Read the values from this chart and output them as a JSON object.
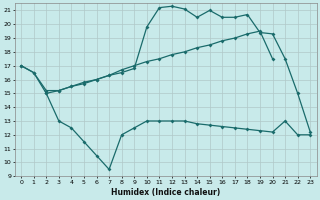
{
  "xlabel": "Humidex (Indice chaleur)",
  "bg_color": "#c8eaea",
  "grid_color": "#b0c8c8",
  "line_color": "#1a6b6b",
  "x_ticks": [
    0,
    1,
    2,
    3,
    4,
    5,
    6,
    7,
    8,
    9,
    10,
    11,
    12,
    13,
    14,
    15,
    16,
    17,
    18,
    19,
    20,
    21,
    22,
    23
  ],
  "ylim": [
    9,
    21.5
  ],
  "xlim": [
    -0.5,
    23.5
  ],
  "y_ticks": [
    9,
    10,
    11,
    12,
    13,
    14,
    15,
    16,
    17,
    18,
    19,
    20,
    21
  ],
  "line1_x": [
    0,
    1,
    2,
    3,
    4,
    5,
    6,
    7,
    8,
    9,
    10,
    11,
    12,
    13,
    14,
    15,
    16,
    17,
    18,
    19,
    20,
    21,
    22,
    23
  ],
  "line1_y": [
    17.0,
    16.5,
    15.0,
    15.2,
    15.5,
    15.7,
    16.0,
    16.3,
    16.5,
    16.8,
    19.8,
    21.2,
    21.3,
    21.1,
    20.5,
    21.0,
    20.5,
    20.5,
    20.7,
    19.4,
    19.3,
    17.5,
    15.0,
    12.2
  ],
  "line2_x": [
    0,
    1,
    2,
    3,
    4,
    5,
    6,
    7,
    8,
    9,
    10,
    11,
    12,
    13,
    14,
    15,
    16,
    17,
    18,
    19,
    20
  ],
  "line2_y": [
    17.0,
    16.5,
    15.2,
    15.2,
    15.5,
    15.8,
    16.0,
    16.3,
    16.7,
    17.0,
    17.3,
    17.5,
    17.8,
    18.0,
    18.3,
    18.5,
    18.8,
    19.0,
    19.3,
    19.5,
    17.5
  ],
  "line3_x": [
    2,
    3,
    4,
    5,
    6,
    7,
    8,
    9,
    10,
    11,
    12,
    13,
    14,
    15,
    16,
    17,
    18,
    19,
    20,
    21,
    22,
    23
  ],
  "line3_y": [
    15.0,
    13.0,
    12.5,
    11.5,
    10.5,
    9.5,
    12.0,
    12.5,
    13.0,
    13.0,
    13.0,
    13.0,
    12.8,
    12.7,
    12.6,
    12.5,
    12.4,
    12.3,
    12.2,
    13.0,
    12.0,
    12.0
  ]
}
